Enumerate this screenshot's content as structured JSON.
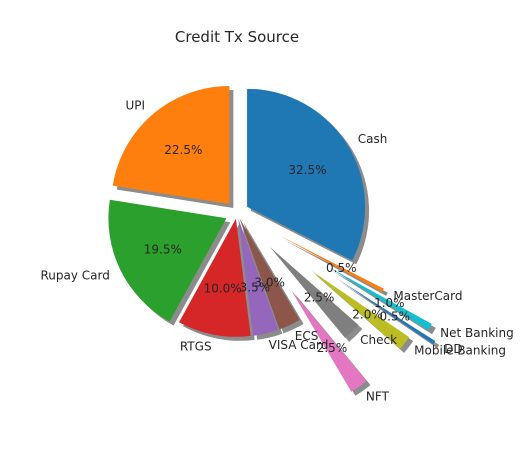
{
  "chart_data": {
    "type": "pie",
    "title": "Credit Tx Source",
    "start_angle_deg": 90,
    "direction": "clockwise",
    "shadow": true,
    "slices": [
      {
        "label": "Cash",
        "pct_label": "32.5%",
        "value": 32.5,
        "color": "#1f77b4",
        "explode": 0.1
      },
      {
        "label": "MasterCard",
        "pct_label": "0.5%",
        "value": 0.5,
        "color": "#ff7f0e",
        "explode": 0.4
      },
      {
        "label": "Net Banking",
        "pct_label": "1.0%",
        "value": 1.0,
        "color": "#17becf",
        "explode": 0.9
      },
      {
        "label": "DD",
        "pct_label": "0.5%",
        "value": 0.5,
        "color": "#1f77b4",
        "explode": 1.0
      },
      {
        "label": "Mobile Banking",
        "pct_label": "2.0%",
        "value": 2.0,
        "color": "#bcbd22",
        "explode": 0.8
      },
      {
        "label": "Check",
        "pct_label": "2.5%",
        "value": 2.5,
        "color": "#7f7f7f",
        "explode": 0.4
      },
      {
        "label": "NFT",
        "pct_label": "2.5%",
        "value": 2.5,
        "color": "#e377c2",
        "explode": 0.8
      },
      {
        "label": "ECS",
        "pct_label": "3.0%",
        "value": 3.0,
        "color": "#8c564b",
        "explode": 0.05
      },
      {
        "label": "VISA Card",
        "pct_label": "3.5%",
        "value": 3.5,
        "color": "#9467bd",
        "explode": 0.05
      },
      {
        "label": "RTGS",
        "pct_label": "10.0%",
        "value": 10.0,
        "color": "#d62728",
        "explode": 0.05
      },
      {
        "label": "Rupay Card",
        "pct_label": "19.5%",
        "value": 19.5,
        "color": "#2ca02c",
        "explode": 0.1
      },
      {
        "label": "UPI",
        "pct_label": "22.5%",
        "value": 22.5,
        "color": "#ff7f0e",
        "explode": 0.1
      }
    ]
  }
}
